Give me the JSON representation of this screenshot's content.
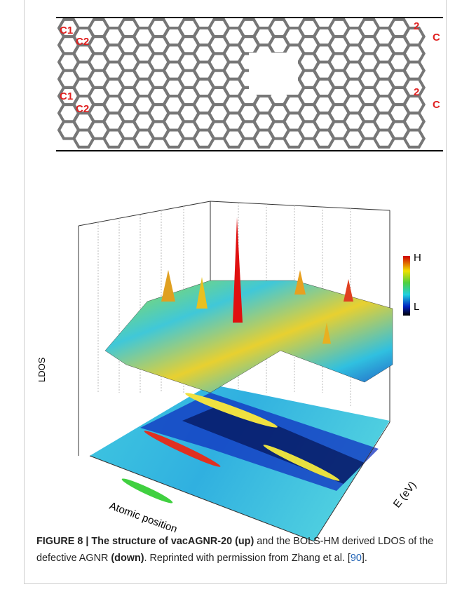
{
  "figure": {
    "structure_labels": [
      "C1",
      "C2",
      "2",
      "C",
      "C1",
      "C2",
      "2",
      "C"
    ],
    "colorbar": {
      "high": "H",
      "low": "L"
    },
    "axes": {
      "vertical": "LDOS",
      "position": "Atomic position",
      "energy": "E (eV)"
    }
  },
  "caption": {
    "label": "FIGURE 8 | The structure of vacAGNR-20 (up)",
    "text1": " and the BOLS-HM derived LDOS of the defective AGNR ",
    "bold2": "(down)",
    "text2": ". Reprinted with permission from Zhang et al. [",
    "ref": "90",
    "text3": "]."
  }
}
